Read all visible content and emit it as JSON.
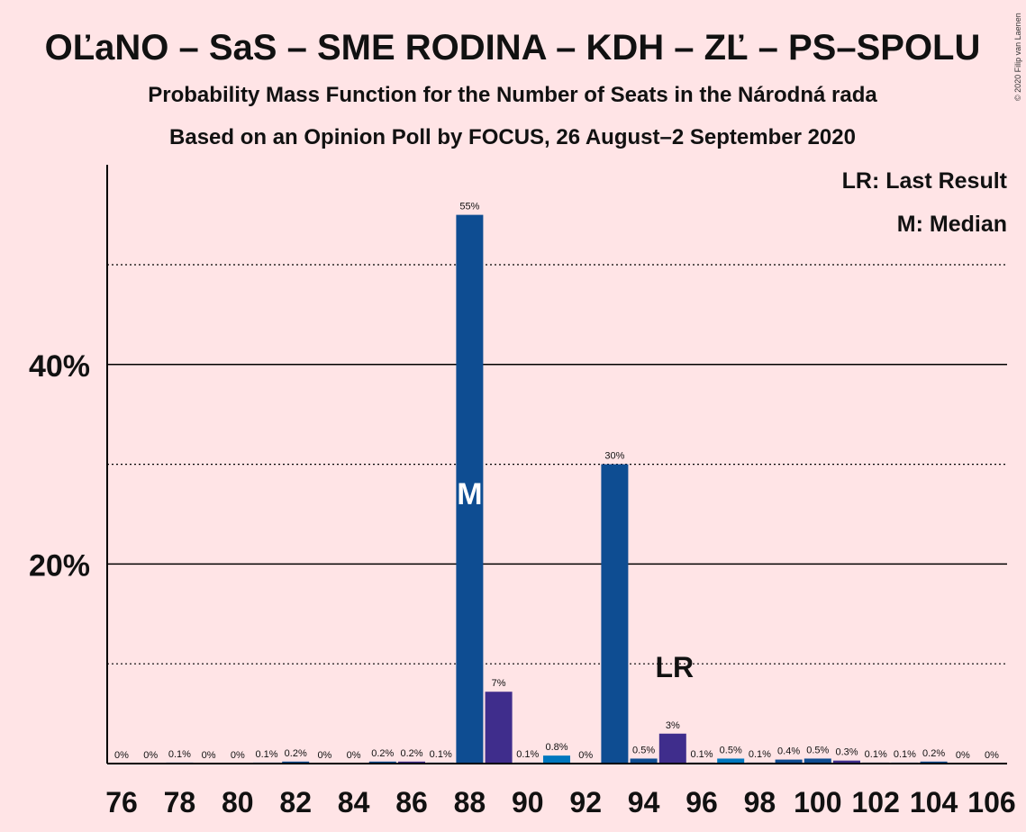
{
  "chart_data": {
    "type": "bar",
    "title": "OĽaNO – SaS – SME RODINA – KDH – ZĽ – PS–SPOLU",
    "subtitle1": "Probability Mass Function for the Number of Seats in the Národná rada",
    "subtitle2": "Based on an Opinion Poll by FOCUS, 26 August–2 September 2020",
    "copyright": "© 2020 Filip van Laenen",
    "legend": {
      "lr": "LR: Last Result",
      "m": "M: Median",
      "placement": "top-right"
    },
    "ylim": [
      0,
      60
    ],
    "y_ticks": [
      {
        "value": 20,
        "label": "20%"
      },
      {
        "value": 40,
        "label": "40%"
      }
    ],
    "minor_gridlines": [
      10,
      30,
      50
    ],
    "x_tick_labels": [
      "76",
      "78",
      "80",
      "82",
      "84",
      "86",
      "88",
      "90",
      "92",
      "94",
      "96",
      "98",
      "100",
      "102",
      "104",
      "106"
    ],
    "categories": [
      76,
      77,
      78,
      79,
      80,
      81,
      82,
      83,
      84,
      85,
      86,
      87,
      88,
      89,
      90,
      91,
      92,
      93,
      94,
      95,
      96,
      97,
      98,
      99,
      100,
      101,
      102,
      103,
      104,
      105,
      106
    ],
    "values": [
      0,
      0,
      0.1,
      0,
      0,
      0.1,
      0.2,
      0,
      0,
      0.2,
      0.2,
      0.1,
      55,
      7.2,
      0.1,
      0.8,
      0,
      30,
      0.5,
      3,
      0.1,
      0.5,
      0.1,
      0.4,
      0.5,
      0.3,
      0.1,
      0.1,
      0.2,
      0,
      0
    ],
    "value_labels": [
      "0%",
      "0%",
      "0.1%",
      "0%",
      "0%",
      "0.1%",
      "0.2%",
      "0%",
      "0%",
      "0.2%",
      "0.2%",
      "0.1%",
      "55%",
      "7%",
      "0.1%",
      "0.8%",
      "0%",
      "30%",
      "0.5%",
      "3%",
      "0.1%",
      "0.5%",
      "0.1%",
      "0.4%",
      "0.5%",
      "0.3%",
      "0.1%",
      "0.1%",
      "0.2%",
      "0%",
      "0%"
    ],
    "bar_colors": [
      "#0E4D92",
      "#0E4D92",
      "#0077BE",
      "#3F2D8C",
      "#0E4D92",
      "#0077BE",
      "#0E4D92",
      "#3F2D8C",
      "#0E4D92",
      "#0E4D92",
      "#3F2D8C",
      "#0077BE",
      "#0E4D92",
      "#3F2D8C",
      "#0E4D92",
      "#0077BE",
      "#0E4D92",
      "#0E4D92",
      "#0E4D92",
      "#3F2D8C",
      "#0E4D92",
      "#0077BE",
      "#0E4D92",
      "#0E4D92",
      "#0E4D92",
      "#3F2D8C",
      "#0E4D92",
      "#0077BE",
      "#0E4D92",
      "#0E4D92",
      "#0E4D92"
    ],
    "median_seat": 88,
    "median_marker": "M",
    "last_result_seat": 95,
    "last_result_marker": "LR"
  }
}
